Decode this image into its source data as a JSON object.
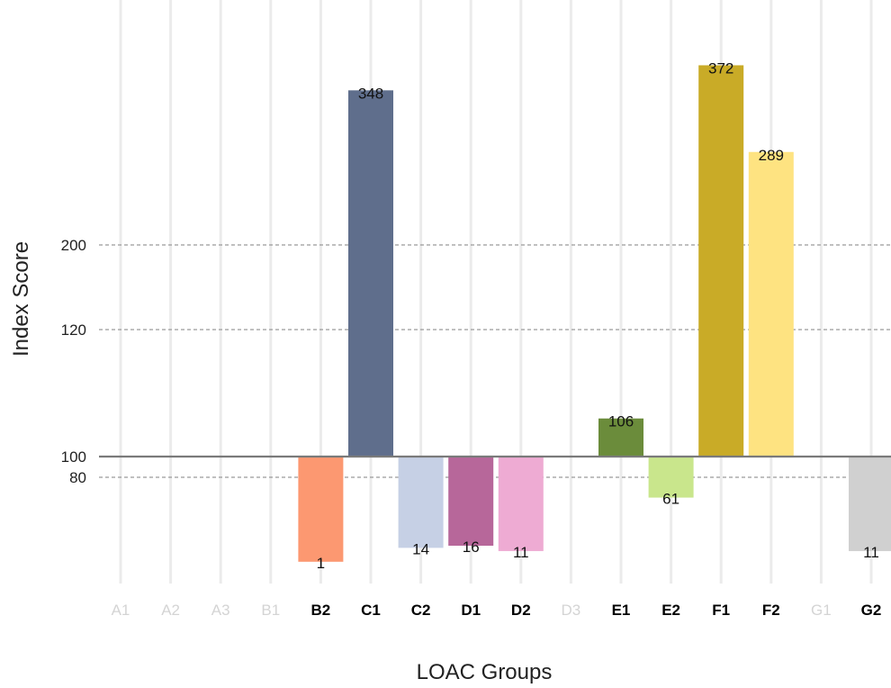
{
  "chart_data": {
    "type": "bar",
    "xlabel": "LOAC Groups",
    "ylabel": "Index Score",
    "baseline": 100,
    "categories": [
      "A1",
      "A2",
      "A3",
      "B1",
      "B2",
      "C1",
      "C2",
      "D1",
      "D2",
      "D3",
      "E1",
      "E2",
      "F1",
      "F2",
      "G1",
      "G2"
    ],
    "active": [
      false,
      false,
      false,
      false,
      true,
      true,
      true,
      true,
      true,
      false,
      true,
      true,
      true,
      true,
      false,
      true
    ],
    "values": [
      null,
      null,
      null,
      null,
      1,
      348,
      14,
      16,
      11,
      null,
      106,
      61,
      372,
      289,
      null,
      11
    ],
    "value_labels": [
      "",
      "",
      "",
      "",
      "1",
      "348",
      "14",
      "16",
      "11",
      "",
      "106",
      "61",
      "372",
      "289",
      "",
      "11"
    ],
    "colors": [
      "",
      "",
      "",
      "",
      "#fc9871",
      "#5f6e8c",
      "#c6d0e5",
      "#b7679a",
      "#eeabd3",
      "",
      "#6b8c3b",
      "#c9e68c",
      "#c9ab27",
      "#fee381",
      "",
      "#d0d0d0"
    ],
    "y_ticks": [
      {
        "label": "200",
        "value": 200
      },
      {
        "label": "120",
        "value": 120
      },
      {
        "label": "100",
        "value": 100
      },
      {
        "label": "80",
        "value": 80
      }
    ],
    "gridlines": "dashed horizontal at ticks, solid light vertical at categories",
    "legend": "none",
    "label_colors": {
      "active": "#000000",
      "inactive": "#d4d4d4"
    }
  }
}
